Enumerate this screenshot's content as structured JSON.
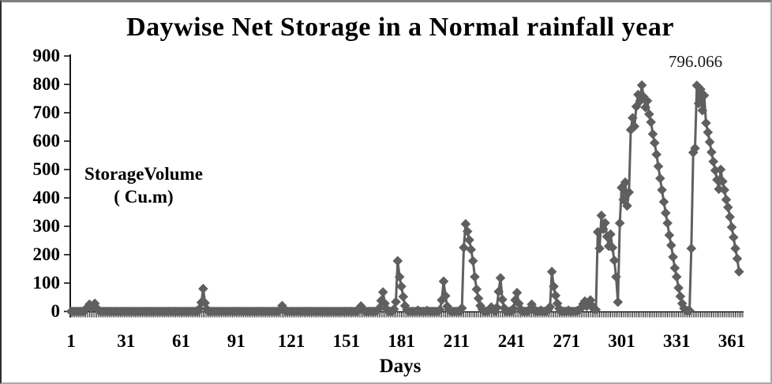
{
  "chart": {
    "title": "Daywise Net Storage in a Normal rainfall year",
    "y_axis_label_line1": "StorageVolume",
    "y_axis_label_line2": "( Cu.m)",
    "x_axis_label": "Days",
    "peak_annotation": "796.066",
    "colors": {
      "series": "#5f5f5f",
      "axis": "#000000",
      "text": "#000000",
      "background": "#ffffff"
    }
  },
  "chart_data": {
    "type": "line",
    "title": "Daywise Net Storage in a Normal rainfall year",
    "xlabel": "Days",
    "ylabel": "StorageVolume ( Cu.m)",
    "marker": "diamond",
    "legend": "none",
    "grid": false,
    "xlim": [
      1,
      365
    ],
    "ylim": [
      0,
      900
    ],
    "x_ticks": [
      1,
      31,
      61,
      91,
      121,
      151,
      181,
      211,
      241,
      271,
      301,
      331,
      361
    ],
    "y_ticks": [
      0,
      100,
      200,
      300,
      400,
      500,
      600,
      700,
      800,
      900
    ],
    "annotation": {
      "text": "796.066",
      "day": 342,
      "value": 796.066
    },
    "series": [
      {
        "name": "Daywise Net Storage",
        "x_start": 1,
        "values": [
          0,
          0,
          0,
          0,
          0,
          0,
          0,
          0,
          6,
          15,
          25,
          10,
          18,
          28,
          12,
          4,
          0,
          0,
          0,
          0,
          0,
          0,
          0,
          0,
          0,
          0,
          0,
          0,
          0,
          0,
          0,
          0,
          0,
          0,
          0,
          0,
          0,
          0,
          0,
          0,
          0,
          0,
          0,
          0,
          0,
          0,
          0,
          0,
          0,
          0,
          0,
          0,
          0,
          0,
          0,
          0,
          0,
          0,
          0,
          0,
          0,
          0,
          0,
          0,
          0,
          0,
          0,
          0,
          0,
          0,
          10,
          32,
          80,
          30,
          8,
          0,
          0,
          0,
          0,
          0,
          0,
          0,
          0,
          0,
          0,
          0,
          0,
          0,
          0,
          0,
          0,
          0,
          0,
          0,
          0,
          0,
          0,
          0,
          0,
          0,
          0,
          0,
          0,
          0,
          0,
          0,
          0,
          0,
          0,
          0,
          0,
          0,
          0,
          0,
          6,
          20,
          8,
          0,
          0,
          0,
          0,
          0,
          0,
          0,
          0,
          0,
          0,
          0,
          0,
          0,
          0,
          0,
          0,
          0,
          0,
          0,
          0,
          0,
          0,
          0,
          0,
          0,
          0,
          0,
          0,
          0,
          0,
          0,
          0,
          0,
          0,
          0,
          0,
          0,
          0,
          0,
          0,
          10,
          19,
          8,
          0,
          0,
          0,
          0,
          0,
          0,
          0,
          5,
          12,
          38,
          68,
          28,
          8,
          0,
          0,
          0,
          8,
          34,
          178,
          122,
          88,
          52,
          20,
          6,
          0,
          0,
          0,
          0,
          0,
          4,
          0,
          0,
          0,
          0,
          3,
          0,
          0,
          0,
          0,
          0,
          0,
          6,
          40,
          106,
          55,
          18,
          5,
          0,
          0,
          0,
          0,
          0,
          0,
          12,
          225,
          308,
          282,
          252,
          218,
          178,
          122,
          78,
          46,
          20,
          8,
          0,
          0,
          0,
          6,
          15,
          8,
          0,
          14,
          70,
          118,
          42,
          12,
          0,
          0,
          0,
          0,
          10,
          40,
          66,
          28,
          8,
          0,
          0,
          0,
          0,
          8,
          25,
          10,
          0,
          0,
          0,
          4,
          0,
          0,
          0,
          6,
          16,
          140,
          88,
          56,
          28,
          10,
          0,
          0,
          0,
          0,
          4,
          0,
          0,
          0,
          0,
          3,
          6,
          12,
          26,
          36,
          18,
          28,
          40,
          20,
          8,
          6,
          280,
          222,
          338,
          290,
          312,
          264,
          230,
          272,
          225,
          180,
          122,
          33,
          311,
          436,
          394,
          455,
          372,
          420,
          640,
          682,
          652,
          722,
          764,
          741,
          797,
          756,
          719,
          742,
          695,
          667,
          625,
          594,
          553,
          511,
          469,
          428,
          386,
          347,
          311,
          269,
          233,
          192,
          153,
          122,
          83,
          53,
          28,
          11,
          4,
          2,
          3,
          222,
          560,
          575,
          796.066,
          733,
          783,
          708,
          761,
          664,
          631,
          597,
          561,
          528,
          497,
          464,
          431,
          500,
          458,
          428,
          394,
          367,
          333,
          297,
          261,
          222,
          186,
          140
        ]
      }
    ]
  }
}
